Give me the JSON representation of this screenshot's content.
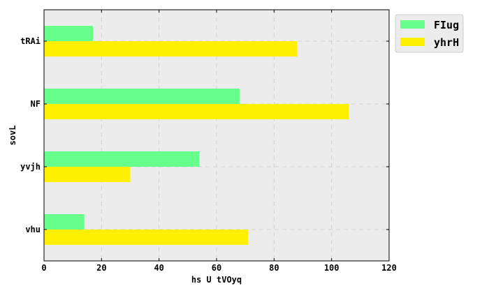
{
  "chart_data": {
    "type": "bar",
    "orientation": "horizontal",
    "title": "",
    "xlabel": "hs U  tVOyq",
    "ylabel": "sovL",
    "xlim": [
      0,
      120
    ],
    "xticks": [
      "0",
      "20",
      "40",
      "60",
      "80",
      "100",
      "120"
    ],
    "categories": [
      "tRAi",
      "NF",
      "yvjh",
      "vhu"
    ],
    "series": [
      {
        "name": "FIug",
        "color": "#66ff8c",
        "values": [
          17,
          68,
          54,
          14
        ]
      },
      {
        "name": "yhrH",
        "color": "#ffef00",
        "values": [
          88,
          106,
          30,
          71
        ]
      }
    ],
    "grid": true,
    "legend_position": "top-right",
    "plot_background": "#ececec"
  }
}
